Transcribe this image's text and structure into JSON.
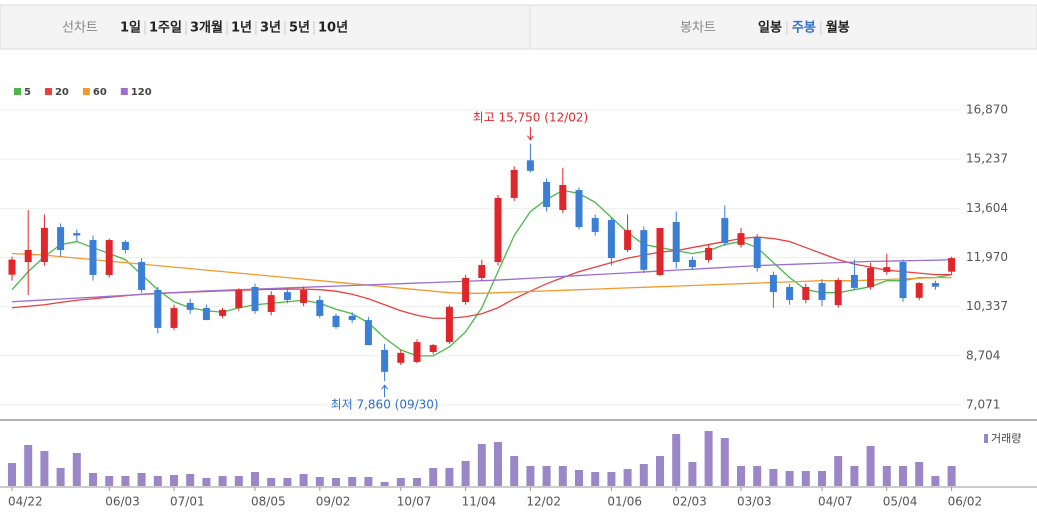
{
  "tabs": {
    "line_label": "선차트",
    "line_items": [
      "1일",
      "1주일",
      "3개월",
      "1년",
      "3년",
      "5년",
      "10년"
    ],
    "candle_label": "봉차트",
    "candle_items": [
      "일봉",
      "주봉",
      "월봉"
    ],
    "active_candle": 1,
    "active_color": "#2f6fd0"
  },
  "chart_data": {
    "type": "candlestick",
    "categories": [
      "04/22",
      null,
      null,
      null,
      null,
      null,
      "06/03",
      null,
      null,
      null,
      "07/01",
      null,
      null,
      null,
      null,
      "08/05",
      null,
      null,
      null,
      "09/02",
      null,
      null,
      null,
      null,
      "10/07",
      null,
      null,
      null,
      "11/04",
      null,
      null,
      null,
      "12/02",
      null,
      null,
      null,
      null,
      "01/06",
      null,
      null,
      null,
      "02/03",
      null,
      null,
      null,
      "03/03",
      null,
      null,
      null,
      null,
      "04/07",
      null,
      null,
      null,
      "05/04",
      null,
      null,
      null,
      "06/02"
    ],
    "open": [
      11400,
      11820,
      11820,
      12980,
      12780,
      12550,
      11390,
      12490,
      11820,
      10890,
      9630,
      10460,
      10290,
      10030,
      10290,
      10990,
      10160,
      10820,
      10460,
      10560,
      10030,
      10030,
      9890,
      8900,
      8470,
      8500,
      8830,
      9160,
      10490,
      11290,
      11820,
      13950,
      15200,
      14480,
      13550,
      14210,
      13280,
      13220,
      12220,
      12880,
      11390,
      13150,
      11890,
      11890,
      13280,
      12390,
      12650,
      11390,
      10990,
      10560,
      11120,
      10390,
      11390,
      10990,
      11490,
      11820,
      10630,
      11120,
      11500
    ],
    "high": [
      12000,
      13550,
      13400,
      13100,
      12900,
      12700,
      12600,
      12550,
      11950,
      11000,
      10400,
      10600,
      10400,
      10300,
      10950,
      11100,
      10850,
      10950,
      11000,
      10700,
      10100,
      10150,
      10000,
      9100,
      8900,
      9250,
      9100,
      10400,
      11400,
      11900,
      14050,
      15000,
      15750,
      14600,
      14950,
      14300,
      13400,
      13300,
      13400,
      13000,
      12950,
      13500,
      12000,
      12400,
      13700,
      12950,
      12750,
      11500,
      11100,
      11100,
      11250,
      11300,
      11900,
      11800,
      12100,
      11900,
      11150,
      11200,
      12000
    ],
    "low": [
      11200,
      10720,
      11700,
      12000,
      12500,
      11200,
      11300,
      12100,
      10800,
      9450,
      9550,
      10100,
      9900,
      9950,
      10200,
      10100,
      10050,
      10450,
      10350,
      9950,
      9600,
      9800,
      9050,
      7860,
      8400,
      8450,
      8750,
      9100,
      10400,
      11200,
      11700,
      13850,
      14800,
      13500,
      13450,
      12900,
      12700,
      11700,
      12150,
      11450,
      11350,
      11600,
      11550,
      11800,
      12350,
      12300,
      11500,
      10300,
      10400,
      10450,
      10350,
      10300,
      10900,
      10900,
      11400,
      10500,
      10550,
      10900,
      11400
    ],
    "close": [
      11900,
      12220,
      12950,
      12220,
      12700,
      11390,
      12550,
      12220,
      10890,
      9630,
      10290,
      10230,
      9890,
      10230,
      10890,
      10190,
      10720,
      10560,
      10890,
      10030,
      9660,
      9890,
      9060,
      8170,
      8800,
      9160,
      9060,
      10330,
      11290,
      11720,
      13950,
      14880,
      14850,
      13650,
      14380,
      12980,
      12820,
      11950,
      12880,
      11560,
      12950,
      11820,
      11650,
      12290,
      12450,
      12780,
      11620,
      10820,
      10560,
      10990,
      10560,
      11220,
      10960,
      11620,
      11650,
      10620,
      11120,
      11000,
      11950
    ],
    "volume": [
      23,
      41,
      35,
      18,
      33,
      13,
      10,
      10,
      13,
      10,
      11,
      12,
      8,
      10,
      10,
      14,
      8,
      8,
      12,
      9,
      8,
      9,
      9,
      4,
      8,
      8,
      18,
      18,
      25,
      42,
      44,
      30,
      20,
      20,
      20,
      16,
      14,
      14,
      17,
      22,
      30,
      52,
      24,
      55,
      48,
      20,
      20,
      17,
      15,
      15,
      15,
      30,
      20,
      40,
      20,
      20,
      24,
      10,
      20
    ],
    "volume_label": "거래량",
    "volume_color": "#9b87c8",
    "up_color": "#e0262b",
    "down_color": "#3a7ed6",
    "series": [
      {
        "name": "5",
        "color": "#4cb848",
        "values": [
          10900,
          11500,
          12000,
          12400,
          12500,
          12300,
          12100,
          11900,
          11400,
          10900,
          10500,
          10300,
          10200,
          10150,
          10300,
          10400,
          10450,
          10500,
          10550,
          10450,
          10250,
          10100,
          9800,
          9300,
          8900,
          8700,
          8700,
          9000,
          9500,
          10300,
          11500,
          12700,
          13500,
          13900,
          14200,
          14100,
          13800,
          13300,
          12800,
          12400,
          12300,
          12200,
          12100,
          12200,
          12400,
          12500,
          12300,
          11800,
          11300,
          10900,
          10800,
          10800,
          10900,
          11000,
          11200,
          11200,
          11300,
          11300,
          11400
        ]
      },
      {
        "name": "20",
        "color": "#e8413f",
        "values": [
          10300,
          10350,
          10400,
          10480,
          10550,
          10600,
          10650,
          10700,
          10750,
          10780,
          10800,
          10820,
          10840,
          10860,
          10880,
          10900,
          10910,
          10920,
          10920,
          10900,
          10850,
          10750,
          10600,
          10400,
          10200,
          10050,
          9950,
          9950,
          10000,
          10100,
          10300,
          10600,
          10850,
          11100,
          11300,
          11500,
          11650,
          11800,
          11950,
          12050,
          12150,
          12200,
          12300,
          12400,
          12500,
          12600,
          12650,
          12600,
          12500,
          12300,
          12100,
          11900,
          11750,
          11650,
          11550,
          11500,
          11450,
          11400,
          11400
        ]
      },
      {
        "name": "60",
        "color": "#f39a2c",
        "values": [
          12100,
          12080,
          12050,
          12000,
          11950,
          11900,
          11850,
          11800,
          11750,
          11700,
          11650,
          11600,
          11550,
          11500,
          11450,
          11400,
          11350,
          11300,
          11250,
          11200,
          11150,
          11100,
          11050,
          11000,
          10950,
          10900,
          10850,
          10800,
          10780,
          10780,
          10800,
          10820,
          10840,
          10860,
          10880,
          10900,
          10920,
          10940,
          10960,
          10980,
          11000,
          11020,
          11040,
          11060,
          11080,
          11100,
          11120,
          11140,
          11160,
          11180,
          11200,
          11200,
          11200,
          11220,
          11240,
          11260,
          11280,
          11300,
          11300
        ]
      },
      {
        "name": "120",
        "color": "#9b6fd0",
        "values": [
          10500,
          10530,
          10560,
          10590,
          10620,
          10650,
          10680,
          10710,
          10740,
          10770,
          10800,
          10830,
          10860,
          10880,
          10900,
          10920,
          10940,
          10960,
          10980,
          11000,
          11020,
          11040,
          11060,
          11080,
          11100,
          11120,
          11140,
          11160,
          11180,
          11200,
          11220,
          11250,
          11280,
          11310,
          11340,
          11370,
          11400,
          11430,
          11460,
          11490,
          11520,
          11550,
          11580,
          11610,
          11640,
          11670,
          11700,
          11720,
          11740,
          11760,
          11780,
          11800,
          11820,
          11840,
          11850,
          11860,
          11870,
          11880,
          11900
        ]
      }
    ],
    "ylim": [
      6570,
      17370
    ],
    "yticks": [
      {
        "value": 7071,
        "label": "7,071"
      },
      {
        "value": 8704,
        "label": "8,704"
      },
      {
        "value": 10337,
        "label": "10,337"
      },
      {
        "value": 11970,
        "label": "11,970"
      },
      {
        "value": 13604,
        "label": "13,604"
      },
      {
        "value": 15237,
        "label": "15,237"
      },
      {
        "value": 16870,
        "label": "16,870"
      }
    ],
    "annotations": [
      {
        "text": "최고 15,750 (12/02)",
        "index": 32,
        "kind": "high",
        "color": "#e0262b"
      },
      {
        "text": "최저 7,860 (09/30)",
        "index": 23,
        "kind": "low",
        "color": "#2f6fd0"
      }
    ]
  }
}
